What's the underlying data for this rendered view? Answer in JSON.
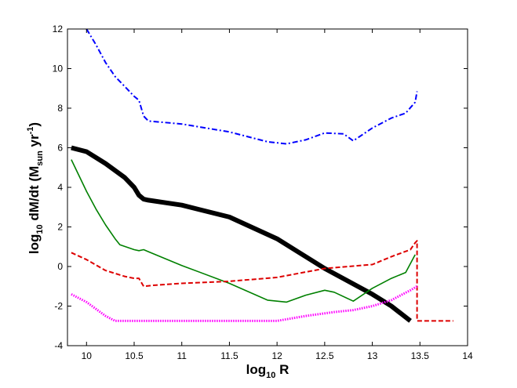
{
  "chart_data": {
    "type": "line",
    "title": "",
    "xlabel": {
      "prefix": "log",
      "sub": "10",
      "suffix": " R"
    },
    "ylabel": {
      "prefix": "log",
      "sub": "10",
      "mid": " dM/dt (M",
      "sub2": "sun",
      "mid2": " yr",
      "sup": "-1",
      "suffix": ")"
    },
    "xlim": [
      9.8,
      14
    ],
    "ylim": [
      -4,
      12
    ],
    "xticks": [
      10,
      10.5,
      11,
      11.5,
      12,
      12.5,
      13,
      13.5,
      14
    ],
    "yticks": [
      -4,
      -2,
      0,
      2,
      4,
      6,
      8,
      10,
      12
    ],
    "xtick_labels": [
      "10",
      "10.5",
      "11",
      "11.5",
      "12",
      "12.5",
      "13",
      "13.5",
      "14"
    ],
    "ytick_labels": [
      "-4",
      "-2",
      "0",
      "2",
      "4",
      "6",
      "8",
      "10",
      "12"
    ],
    "grid": false,
    "legend": "none",
    "series": [
      {
        "color": "#0000ff",
        "style": "dashdot",
        "width": 2,
        "x": [
          10.0,
          10.1,
          10.2,
          10.3,
          10.4,
          10.5,
          10.55,
          10.6,
          10.65,
          11.0,
          11.5,
          11.9,
          12.1,
          12.3,
          12.5,
          12.7,
          12.8,
          13.0,
          13.2,
          13.35,
          13.45,
          13.47
        ],
        "y": [
          12.0,
          11.2,
          10.3,
          9.6,
          9.1,
          8.6,
          8.4,
          7.6,
          7.35,
          7.2,
          6.8,
          6.3,
          6.2,
          6.4,
          6.75,
          6.7,
          6.35,
          7.0,
          7.5,
          7.75,
          8.3,
          8.85
        ]
      },
      {
        "color": "#000000",
        "style": "solid",
        "width": 6,
        "x": [
          9.84,
          10.0,
          10.2,
          10.4,
          10.5,
          10.55,
          10.6,
          10.65,
          11.0,
          11.5,
          12.0,
          12.5,
          13.0,
          13.2,
          13.4
        ],
        "y": [
          6.0,
          5.8,
          5.2,
          4.5,
          4.0,
          3.6,
          3.4,
          3.35,
          3.1,
          2.5,
          1.4,
          -0.1,
          -1.4,
          -2.0,
          -2.75
        ]
      },
      {
        "color": "#008000",
        "style": "solid",
        "width": 1.6,
        "x": [
          9.84,
          10.0,
          10.1,
          10.2,
          10.3,
          10.35,
          10.5,
          10.55,
          10.6,
          10.65,
          11.0,
          11.5,
          11.9,
          12.1,
          12.3,
          12.5,
          12.6,
          12.8,
          13.0,
          13.2,
          13.35,
          13.45
        ],
        "y": [
          5.4,
          3.8,
          2.9,
          2.1,
          1.4,
          1.1,
          0.85,
          0.8,
          0.85,
          0.75,
          0.05,
          -0.85,
          -1.7,
          -1.8,
          -1.45,
          -1.2,
          -1.3,
          -1.75,
          -1.1,
          -0.6,
          -0.3,
          0.6
        ]
      },
      {
        "color": "#dd0000",
        "style": "dashed",
        "width": 2,
        "x": [
          9.84,
          10.0,
          10.2,
          10.4,
          10.5,
          10.55,
          10.6,
          10.7,
          11.0,
          11.5,
          12.0,
          12.5,
          13.0,
          13.2,
          13.4,
          13.45,
          13.47,
          13.47,
          13.5,
          13.7,
          13.85
        ],
        "y": [
          0.7,
          0.35,
          -0.2,
          -0.5,
          -0.6,
          -0.6,
          -1.0,
          -0.95,
          -0.85,
          -0.75,
          -0.55,
          -0.1,
          0.1,
          0.5,
          0.85,
          1.2,
          1.3,
          -2.75,
          -2.75,
          -2.75,
          -2.75
        ]
      },
      {
        "color": "#ff00ff",
        "style": "dotted",
        "width": 3,
        "x": [
          9.84,
          10.0,
          10.2,
          10.3,
          10.4,
          10.5,
          11.0,
          11.5,
          12.0,
          12.3,
          12.6,
          12.8,
          13.0,
          13.2,
          13.4,
          13.47
        ],
        "y": [
          -1.4,
          -1.8,
          -2.5,
          -2.75,
          -2.75,
          -2.75,
          -2.75,
          -2.75,
          -2.75,
          -2.5,
          -2.3,
          -2.2,
          -2.0,
          -1.7,
          -1.2,
          -1.0
        ]
      }
    ]
  }
}
